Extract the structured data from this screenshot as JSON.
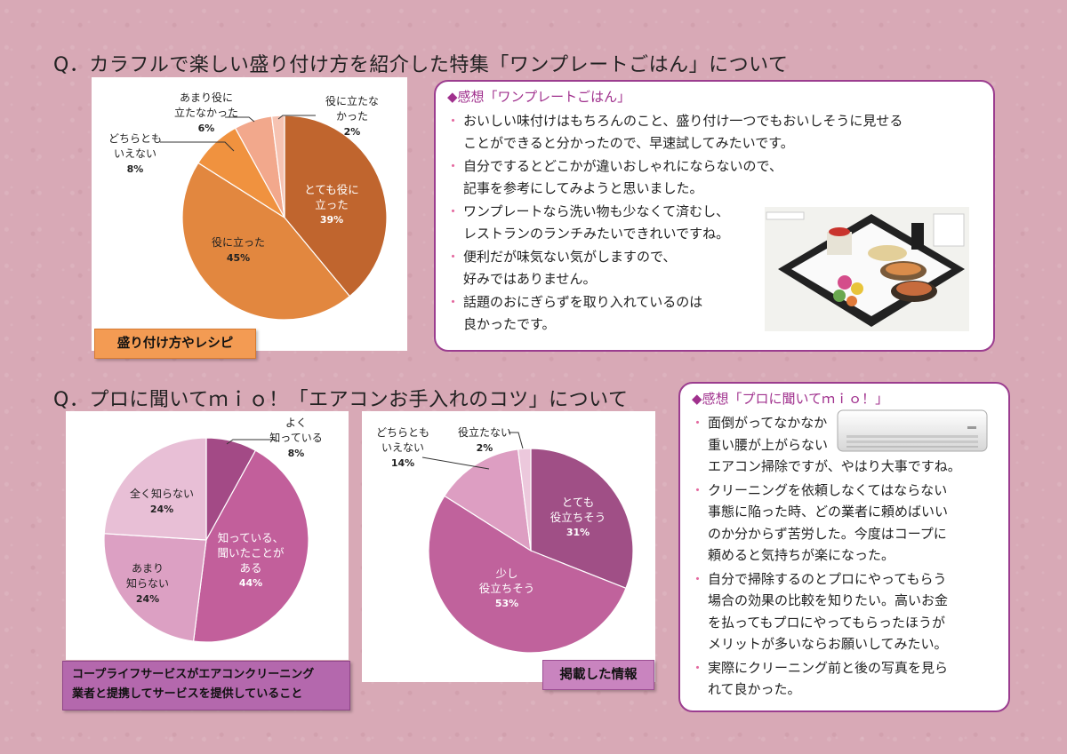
{
  "q1": {
    "title": "Q．カラフルで楽しい盛り付け方を紹介した特集「ワンプレートごはん」について",
    "tag": "盛り付け方やレシピ",
    "comments_head": "◆感想「ワンプレートごはん」",
    "comments": [
      [
        "おいしい味付けはもちろんのこと、盛り付け一つでもおいしそうに見せる",
        "ことができると分かったので、早速試してみたいです。"
      ],
      [
        "自分でするとどこかが違いおしゃれにならないので、",
        "記事を参考にしてみようと思いました。"
      ],
      [
        "ワンプレートなら洗い物も少なくて済むし、",
        "レストランのランチみたいできれいですね。"
      ],
      [
        "便利だが味気ない気がしますので、",
        "好みではありません。"
      ],
      [
        "話題のおにぎらずを取り入れているのは",
        "良かったです。"
      ]
    ]
  },
  "q2": {
    "title": "Q．プロに聞いてｍｉｏ！「エアコンお手入れのコツ」について",
    "tag_left": [
      "コープライフサービスがエアコンクリーニング",
      "業者と提携してサービスを提供していること"
    ],
    "tag_right": "掲載した情報",
    "comments_head": "◆感想「プロに聞いてｍｉｏ！」",
    "comments": [
      [
        "面倒がってなかなか",
        "重い腰が上がらない",
        "エアコン掃除ですが、やはり大事ですね。"
      ],
      [
        "クリーニングを依頼しなくてはならない",
        "事態に陥った時、どの業者に頼めばいい",
        "のか分からず苦労した。今度はコープに",
        "頼めると気持ちが楽になった。"
      ],
      [
        "自分で掃除するのとプロにやってもらう",
        "場合の効果の比較を知りたい。高いお金",
        "を払ってもプロにやってもらったほうが",
        "メリットが多いならお願いしてみたい。"
      ],
      [
        "実際にクリーニング前と後の写真を見ら",
        "れて良かった。"
      ]
    ]
  },
  "chart_data": [
    {
      "type": "pie",
      "categories": [
        "とても役に立った",
        "役に立った",
        "どちらともいえない",
        "あまり役に立たなかった",
        "役に立たなかった"
      ],
      "values": [
        39,
        45,
        8,
        6,
        2
      ],
      "colors": [
        "#c0652e",
        "#e2873f",
        "#f0923f",
        "#f2a88c",
        "#f6c3b2"
      ],
      "labels": [
        [
          "とても役に",
          "立った",
          "39%"
        ],
        [
          "役に立った",
          "45%"
        ],
        [
          "どちらとも",
          "いえない",
          "8%"
        ],
        [
          "あまり役に",
          "立たなかった",
          "6%"
        ],
        [
          "役に立たな",
          "かった",
          "2%"
        ]
      ]
    },
    {
      "type": "pie",
      "categories": [
        "よく知っている",
        "知っている、聞いたことがある",
        "あまり知らない",
        "全く知らない"
      ],
      "values": [
        8,
        44,
        24,
        24
      ],
      "colors": [
        "#a34a86",
        "#c25f9b",
        "#dca0c3",
        "#e8bfd6"
      ],
      "labels": [
        [
          "よく",
          "知っている",
          "8%"
        ],
        [
          "知っている、",
          "聞いたことが",
          "ある",
          "44%"
        ],
        [
          "あまり",
          "知らない",
          "24%"
        ],
        [
          "全く知らない",
          "24%"
        ]
      ]
    },
    {
      "type": "pie",
      "categories": [
        "とても役立ちそう",
        "少し役立ちそう",
        "どちらともいえない",
        "役立たない"
      ],
      "values": [
        31,
        53,
        14,
        2
      ],
      "colors": [
        "#a04f86",
        "#c0629c",
        "#dd9ec2",
        "#ecc8dc"
      ],
      "labels": [
        [
          "とても",
          "役立ちそう",
          "31%"
        ],
        [
          "少し",
          "役立ちそう",
          "53%"
        ],
        [
          "どちらとも",
          "いえない",
          "14%"
        ],
        [
          "役立たない",
          "2%"
        ]
      ]
    }
  ]
}
